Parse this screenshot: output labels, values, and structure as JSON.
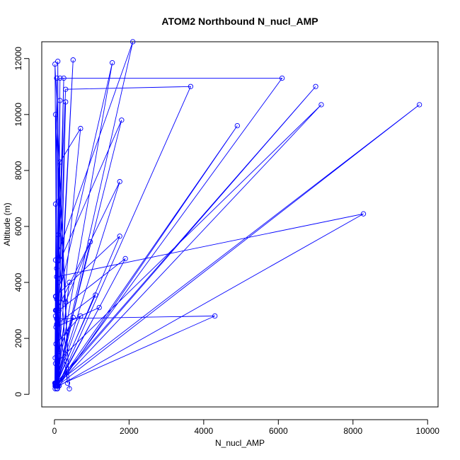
{
  "chart_data": {
    "type": "line",
    "title": "ATOM2 Northbound N_nucl_AMP",
    "xlabel": "N_nucl_AMP",
    "ylabel": "Altitude (m)",
    "xlim": [
      -340,
      10280
    ],
    "ylim": [
      -450,
      12600
    ],
    "xticks": [
      0,
      2000,
      4000,
      6000,
      8000,
      10000
    ],
    "yticks": [
      0,
      2000,
      4000,
      6000,
      8000,
      10000,
      12000
    ],
    "grid": false,
    "legend": "none",
    "marker": "open-circle",
    "color": "#0000ff",
    "series": [
      {
        "x": [
          20,
          40,
          10,
          60,
          30,
          250,
          80,
          15,
          400,
          30,
          60,
          90,
          120,
          30,
          2100,
          40,
          500,
          60,
          150,
          6100,
          80,
          30,
          1550,
          40,
          30,
          300,
          3650,
          90,
          60,
          1800,
          20,
          7000,
          40,
          100,
          60,
          4900,
          120,
          300,
          60,
          9780,
          80,
          150,
          700,
          40,
          60,
          1750,
          30,
          60,
          8280,
          120,
          40,
          100,
          350,
          30,
          1750,
          40,
          60,
          300,
          960,
          40,
          120,
          1900,
          80,
          60,
          4300,
          80,
          150,
          30,
          60,
          1100,
          20,
          40,
          1200,
          60,
          40,
          700,
          30,
          80,
          500,
          60,
          30,
          7150,
          60,
          120,
          30,
          20,
          40,
          400,
          60,
          30,
          80
        ],
        "y": [
          200,
          3500,
          400,
          11300,
          300,
          11300,
          200,
          11800,
          200,
          10000,
          300,
          11900,
          300,
          4800,
          12600,
          300,
          11950,
          200,
          11300,
          11300,
          300,
          3000,
          11850,
          300,
          2800,
          10900,
          11000,
          300,
          4500,
          9800,
          300,
          11000,
          400,
          4000,
          300,
          9600,
          300,
          10450,
          400,
          10350,
          300,
          8300,
          9500,
          400,
          3000,
          7600,
          300,
          4200,
          6450,
          300,
          3000,
          5700,
          400,
          3500,
          5650,
          300,
          3400,
          3300,
          5450,
          300,
          3000,
          4850,
          300,
          2700,
          2800,
          300,
          10500,
          400,
          2500,
          3550,
          300,
          2400,
          3100,
          300,
          1800,
          2800,
          300,
          1500,
          2750,
          300,
          1100,
          10350,
          300,
          6900,
          400,
          1300,
          300,
          4000,
          300,
          6800,
          300
        ]
      }
    ]
  }
}
